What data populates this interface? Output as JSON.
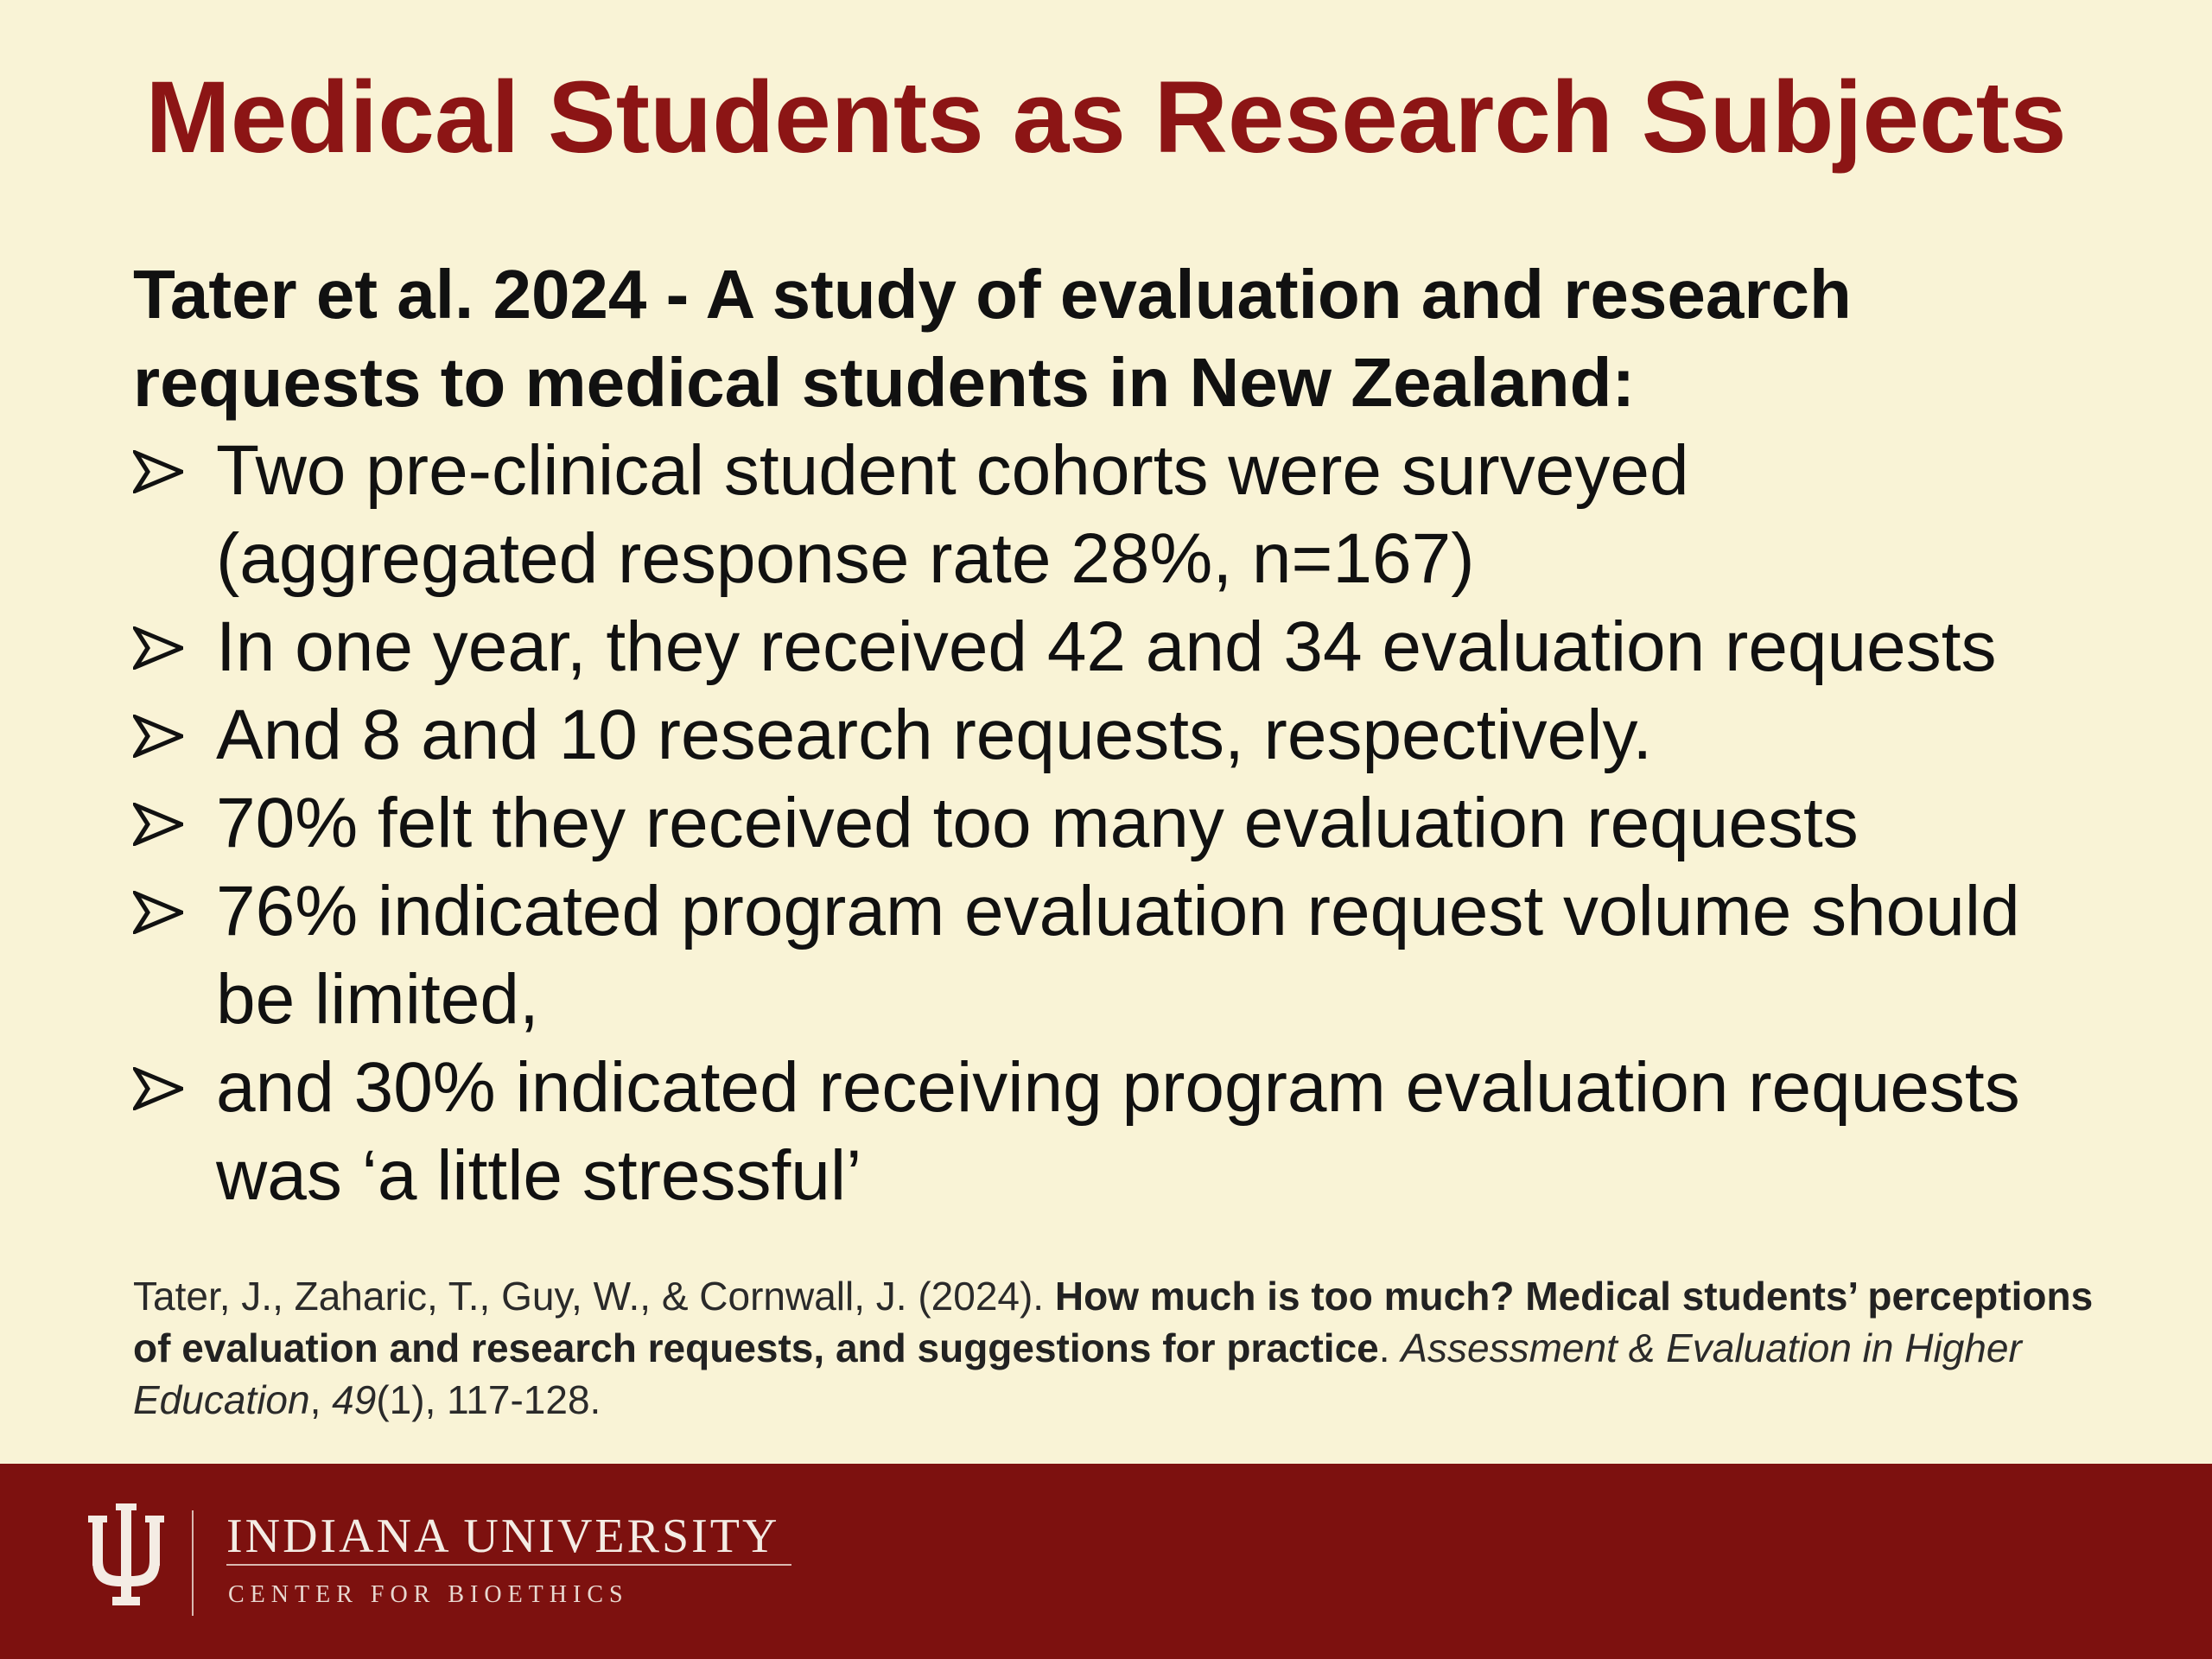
{
  "slide": {
    "title": "Medical Students as Research Subjects",
    "heading_line1": "Tater et al. 2024 - A study of evaluation and research",
    "heading_line2": "requests to medical students in New Zealand:",
    "bullets": [
      {
        "line1": "Two pre-clinical student cohorts were surveyed",
        "line2": "(aggregated response rate 28%, n=167)"
      },
      {
        "line1": "In one year, they received 42 and 34 evaluation requests"
      },
      {
        "line1": "And 8 and 10 research requests, respectively."
      },
      {
        "line1": "70% felt they received too many evaluation requests"
      },
      {
        "line1": "76% indicated program evaluation request volume should",
        "line2": "be limited,"
      },
      {
        "line1": "and 30% indicated receiving program evaluation requests",
        "line2": "was ‘a little stressful’"
      }
    ],
    "bullet_icon": "arrowhead-bullet-icon"
  },
  "citation": {
    "authors": "Tater, J., Zaharic, T., Guy, W., & Cornwall, J. (2024). ",
    "title": "How much is too much? Medical students’ perceptions of evaluation and research requests, and suggestions for practice",
    "sep": ". ",
    "journal": "Assessment & Evaluation in Higher Education",
    "comma": ", ",
    "volume": "49",
    "issue_pages": "(1), 117-128."
  },
  "footer": {
    "logo_icon": "iu-trident-logo-icon",
    "org_name": "INDIANA UNIVERSITY",
    "center_name": "CENTER FOR BIOETHICS"
  },
  "colors": {
    "background": "#f9f3d6",
    "title": "#8c1515",
    "footer": "#7d110f",
    "text": "#111111"
  }
}
